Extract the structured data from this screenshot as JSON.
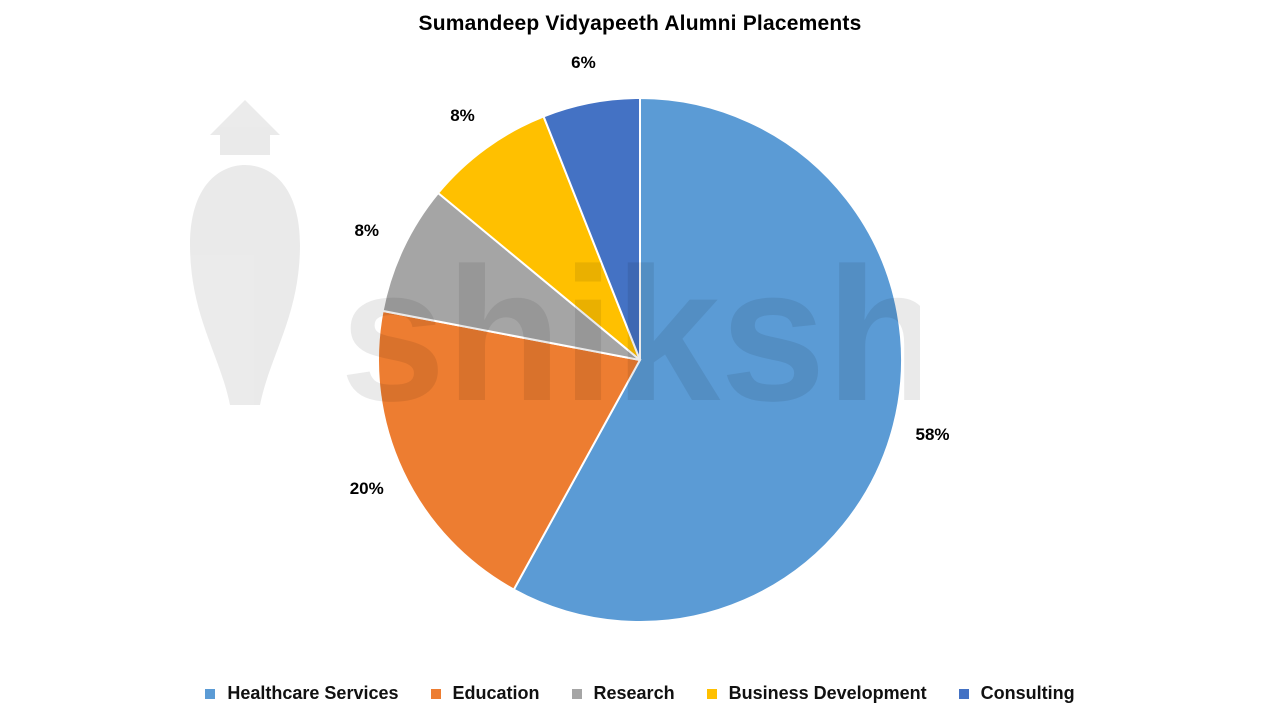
{
  "title": "Sumandeep Vidyapeeth Alumni Placements",
  "watermark": {
    "text": "shiksha",
    "icon": "graduation-cap-logo-icon"
  },
  "chart_data": {
    "type": "pie",
    "title": "Sumandeep Vidyapeeth Alumni Placements",
    "categories": [
      "Healthcare Services",
      "Education",
      "Research",
      "Business Development",
      "Consulting"
    ],
    "values": [
      58,
      20,
      8,
      8,
      6
    ],
    "labels": [
      "58%",
      "20%",
      "8%",
      "8%",
      "6%"
    ],
    "colors": [
      "#5B9BD5",
      "#ED7D31",
      "#A5A5A5",
      "#FFC000",
      "#4472C4"
    ],
    "start_angle_deg": 0,
    "direction": "clockwise",
    "legend_position": "bottom",
    "unit": "%"
  },
  "legend": {
    "items": [
      {
        "label": "Healthcare Services",
        "color": "#5B9BD5"
      },
      {
        "label": "Education",
        "color": "#ED7D31"
      },
      {
        "label": "Research",
        "color": "#A5A5A5"
      },
      {
        "label": "Business Development",
        "color": "#FFC000"
      },
      {
        "label": "Consulting",
        "color": "#4472C4"
      }
    ]
  }
}
